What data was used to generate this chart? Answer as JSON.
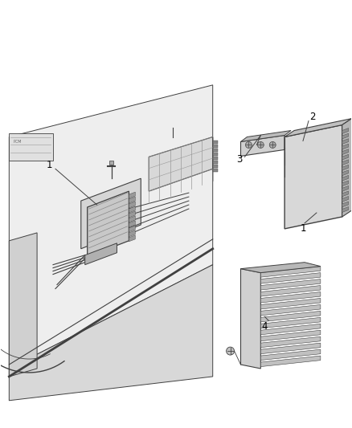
{
  "background_color": "#ffffff",
  "fig_width": 4.38,
  "fig_height": 5.33,
  "dpi": 100,
  "line_color": "#404040",
  "text_color": "#000000",
  "font_size": 8,
  "gray_light": "#e8e8e8",
  "gray_mid": "#c8c8c8",
  "gray_dark": "#a0a0a0",
  "gray_very_light": "#f2f2f2"
}
